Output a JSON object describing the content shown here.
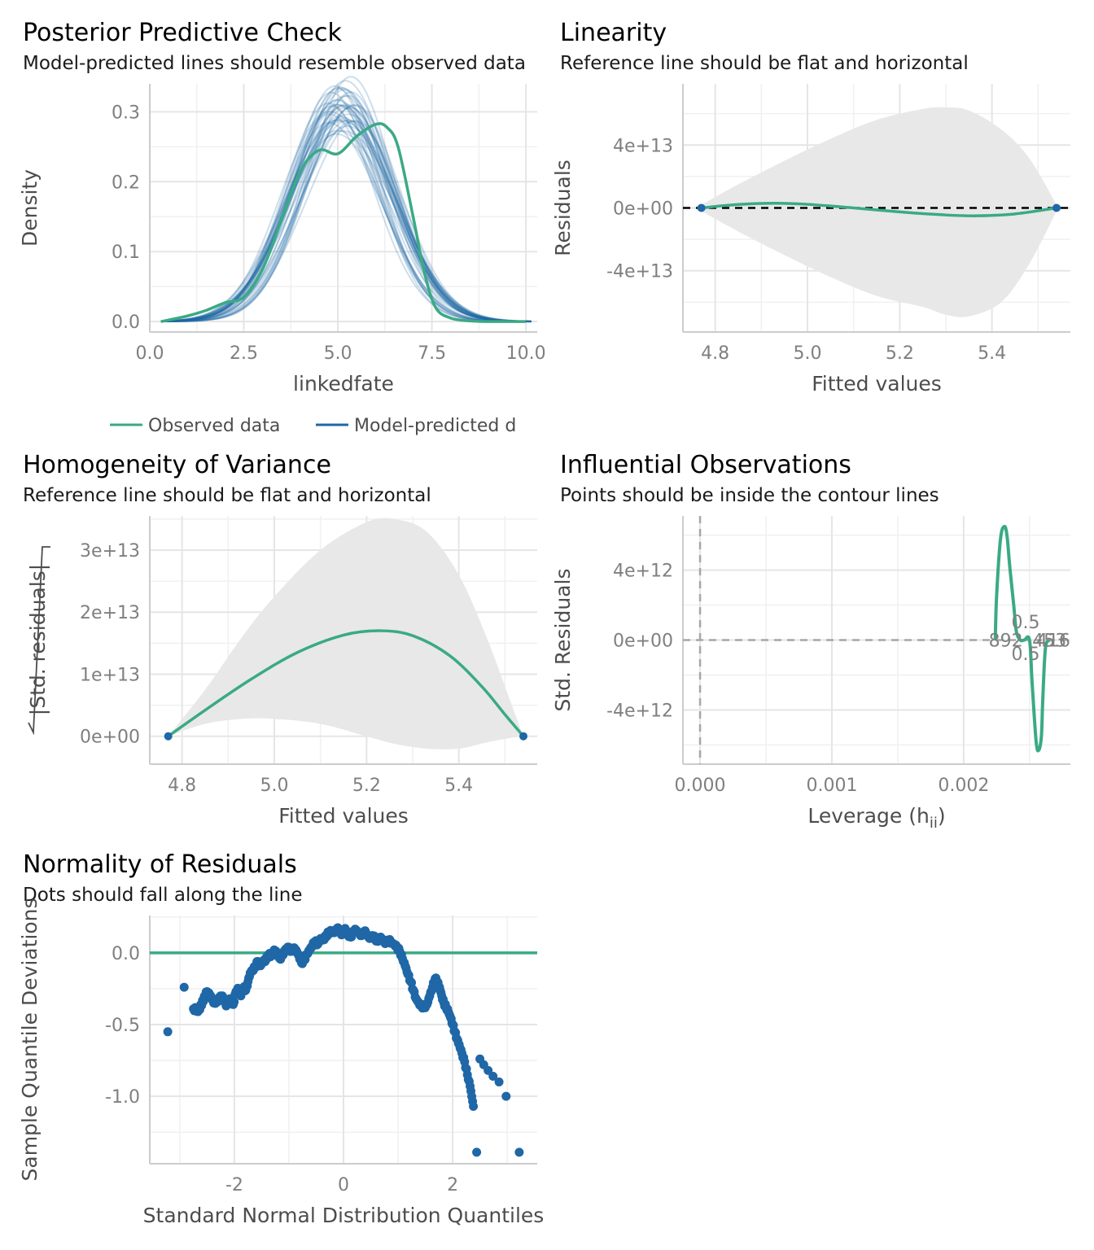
{
  "colors": {
    "observed": "#3aaa84",
    "predicted": "#1f67a6",
    "ribbon": "#e8e8e8",
    "reference": "#000000"
  },
  "panels": {
    "ppc": {
      "title": "Posterior Predictive Check",
      "subtitle": "Model-predicted lines should resemble observed data"
    },
    "linearity": {
      "title": "Linearity",
      "subtitle": "Reference line should be flat and horizontal"
    },
    "homogeneity": {
      "title": "Homogeneity of Variance",
      "subtitle": "Reference line should be flat and horizontal"
    },
    "influential": {
      "title": "Influential Observations",
      "subtitle": "Points should be inside the contour lines"
    },
    "normality": {
      "title": "Normality of Residuals",
      "subtitle": "Dots should fall along the line"
    }
  },
  "chart_data": [
    {
      "id": "ppc",
      "type": "line",
      "xlabel": "linkedfate",
      "ylabel": "Density",
      "xlim": [
        0,
        10.3
      ],
      "ylim": [
        -0.015,
        0.34
      ],
      "xticks": [
        "0.0",
        "2.5",
        "5.0",
        "7.5",
        "10.0"
      ],
      "xtick_values": [
        0,
        2.5,
        5,
        7.5,
        10
      ],
      "yticks": [
        "0.0",
        "0.1",
        "0.2",
        "0.3"
      ],
      "ytick_values": [
        0,
        0.1,
        0.2,
        0.3
      ],
      "legend": {
        "position": "bottom",
        "entries": [
          "Observed data",
          "Model-predicted d"
        ]
      },
      "observed": {
        "x": [
          0.3,
          1.0,
          1.5,
          2.0,
          2.5,
          3.0,
          3.5,
          4.0,
          4.5,
          5.0,
          5.5,
          6.0,
          6.3,
          6.6,
          7.0,
          7.3,
          7.6,
          8.0,
          8.5,
          9.0,
          10.0
        ],
        "y": [
          0.0,
          0.008,
          0.016,
          0.027,
          0.035,
          0.075,
          0.145,
          0.215,
          0.245,
          0.24,
          0.265,
          0.282,
          0.278,
          0.25,
          0.15,
          0.07,
          0.02,
          0.005,
          0.001,
          0.0,
          0.0
        ]
      },
      "predicted": {
        "n_draws": 40,
        "mean": 5.1,
        "sd_range": [
          1.2,
          1.35
        ],
        "peak_range": [
          0.285,
          0.325
        ]
      }
    },
    {
      "id": "linearity",
      "type": "line",
      "xlabel": "Fitted values",
      "ylabel": "Residuals",
      "xlim": [
        4.73,
        5.57
      ],
      "ylim": [
        -79000000000000.0,
        79000000000000.0
      ],
      "xticks": [
        "4.8",
        "5.0",
        "5.2",
        "5.4"
      ],
      "xtick_values": [
        4.8,
        5.0,
        5.2,
        5.4
      ],
      "yticks": [
        "4e+13",
        "0e+00",
        "-4e+13"
      ],
      "ytick_values": [
        40000000000000.0,
        0,
        -40000000000000.0
      ],
      "reference_y": 0,
      "points": {
        "x": [
          4.77,
          5.54
        ],
        "y": [
          0,
          0
        ]
      },
      "smooth": {
        "x": [
          4.77,
          4.85,
          4.93,
          5.0,
          5.1,
          5.2,
          5.3,
          5.37,
          5.45,
          5.54
        ],
        "y": [
          0,
          2200000000000.0,
          3000000000000.0,
          2300000000000.0,
          0,
          -2500000000000.0,
          -4500000000000.0,
          -5000000000000.0,
          -3800000000000.0,
          0
        ]
      },
      "ribbon": {
        "x": [
          4.77,
          4.85,
          4.95,
          5.05,
          5.15,
          5.25,
          5.3,
          5.35,
          5.42,
          5.48,
          5.54
        ],
        "upper": [
          2000000000000.0,
          15000000000000.0,
          30000000000000.0,
          44000000000000.0,
          56000000000000.0,
          63000000000000.0,
          64000000000000.0,
          62000000000000.0,
          50000000000000.0,
          32000000000000.0,
          2000000000000.0
        ],
        "lower": [
          -2000000000000.0,
          -15000000000000.0,
          -30000000000000.0,
          -44000000000000.0,
          -56000000000000.0,
          -63000000000000.0,
          -68000000000000.0,
          -69000000000000.0,
          -60000000000000.0,
          -36000000000000.0,
          -2000000000000.0
        ]
      }
    },
    {
      "id": "homogeneity",
      "type": "line",
      "xlabel": "Fitted values",
      "ylabel": "|Std. residuals|",
      "xlim": [
        4.73,
        5.57
      ],
      "ylim": [
        -4500000000000.0,
        35500000000000.0
      ],
      "xticks": [
        "4.8",
        "5.0",
        "5.2",
        "5.4"
      ],
      "xtick_values": [
        4.8,
        5.0,
        5.2,
        5.4
      ],
      "yticks": [
        "3e+13",
        "2e+13",
        "1e+13",
        "0e+00"
      ],
      "ytick_values": [
        30000000000000.0,
        20000000000000.0,
        10000000000000.0,
        0
      ],
      "points": {
        "x": [
          4.77,
          5.54
        ],
        "y": [
          0,
          0
        ]
      },
      "smooth": {
        "x": [
          4.77,
          4.85,
          4.95,
          5.05,
          5.15,
          5.23,
          5.3,
          5.38,
          5.45,
          5.5,
          5.54
        ],
        "y": [
          0,
          4200000000000.0,
          9200000000000.0,
          13500000000000.0,
          16300000000000.0,
          17000000000000.0,
          16200000000000.0,
          13000000000000.0,
          8000000000000.0,
          3500000000000.0,
          0
        ]
      },
      "ribbon": {
        "x": [
          4.77,
          4.85,
          4.93,
          5.0,
          5.1,
          5.2,
          5.26,
          5.33,
          5.4,
          5.46,
          5.51,
          5.54
        ],
        "upper": [
          0,
          7500000000000.0,
          16000000000000.0,
          22500000000000.0,
          30000000000000.0,
          34500000000000.0,
          35000000000000.0,
          33000000000000.0,
          26000000000000.0,
          16000000000000.0,
          6000000000000.0,
          0
        ],
        "lower": [
          0,
          2000000000000.0,
          2800000000000.0,
          2800000000000.0,
          2000000000000.0,
          0.0,
          -1200000000000.0,
          -2000000000000.0,
          -2000000000000.0,
          -1000000000000.0,
          -300000000000.0,
          0
        ]
      }
    },
    {
      "id": "influential",
      "type": "line",
      "xlabel": "Leverage (h",
      "xlabel_sub": "ii",
      "xlabel_suffix": ")",
      "ylabel": "Std. Residuals",
      "xlim": [
        -0.00013,
        0.00281
      ],
      "ylim": [
        -7100000000000.0,
        7100000000000.0
      ],
      "xticks": [
        "0.000",
        "0.001",
        "0.002"
      ],
      "xtick_values": [
        0,
        0.001,
        0.002
      ],
      "yticks": [
        "4e+12",
        "0e+00",
        "-4e+12"
      ],
      "ytick_values": [
        4000000000000.0,
        0,
        -4000000000000.0
      ],
      "contour_label": "0.5",
      "contour": {
        "x": [
          0.00224,
          0.00225,
          0.00228,
          0.00231,
          0.00233,
          0.00235,
          0.00238,
          0.0024,
          0.00243,
          0.00246,
          0.0025,
          0.00252,
          0.00255,
          0.00257,
          0.00259,
          0.0026,
          0.00262,
          0.00265
        ],
        "y": [
          0,
          2500000000000.0,
          5800000000000.0,
          6500000000000.0,
          5900000000000.0,
          4200000000000.0,
          2000000000000.0,
          500000000000.0,
          0,
          0,
          0,
          -2500000000000.0,
          -5800000000000.0,
          -6300000000000.0,
          -5500000000000.0,
          -3500000000000.0,
          -500000000000.0,
          0
        ]
      },
      "point_labels": [
        {
          "text": "892",
          "x": 0.00232,
          "y": 0
        },
        {
          "text": "453",
          "x": 0.00265,
          "y": 0
        },
        {
          "text": "416",
          "x": 0.00268,
          "y": 0
        }
      ]
    },
    {
      "id": "normality",
      "type": "scatter",
      "xlabel": "Standard Normal Distribution Quantiles",
      "ylabel": "Sample Quantile Deviations",
      "xlim": [
        -3.55,
        3.55
      ],
      "ylim": [
        -1.47,
        0.26
      ],
      "xticks": [
        "-2",
        "0",
        "2"
      ],
      "xtick_values": [
        -2,
        0,
        2
      ],
      "yticks": [
        "0.0",
        "-0.5",
        "-1.0"
      ],
      "ytick_values": [
        0,
        -0.5,
        -1.0
      ],
      "reference_y": 0,
      "points": {
        "x": [
          -3.22,
          -2.92,
          -2.75,
          -2.65,
          -2.5,
          -2.45,
          -2.38,
          -2.3,
          -2.22,
          -2.15,
          -2.08,
          -2.02,
          -1.97,
          -1.92,
          -1.88,
          -1.83,
          -1.79,
          -1.75,
          -1.71,
          -1.67,
          -1.62,
          -1.57,
          -1.52,
          -1.47,
          -1.42,
          -1.37,
          -1.32,
          -1.27,
          -1.22,
          -1.17,
          -1.12,
          -1.07,
          -1.02,
          -0.97,
          -0.92,
          -0.87,
          -0.82,
          -0.77,
          -0.72,
          -0.67,
          -0.62,
          -0.57,
          -0.52,
          -0.47,
          -0.42,
          -0.37,
          -0.32,
          -0.27,
          -0.22,
          -0.17,
          -0.12,
          -0.07,
          -0.02,
          0.03,
          0.08,
          0.13,
          0.18,
          0.23,
          0.28,
          0.33,
          0.38,
          0.43,
          0.48,
          0.53,
          0.58,
          0.63,
          0.68,
          0.73,
          0.78,
          0.83,
          0.88,
          0.93,
          0.98,
          1.03,
          1.08,
          1.13,
          1.18,
          1.23,
          1.28,
          1.33,
          1.38,
          1.43,
          1.48,
          1.53,
          1.58,
          1.63,
          1.68,
          1.72,
          1.76,
          1.8,
          1.84,
          1.88,
          1.92,
          1.96,
          2.0,
          2.04,
          2.08,
          2.12,
          2.17,
          2.22,
          2.27,
          2.32,
          2.38,
          2.44,
          2.5,
          2.57,
          2.65,
          2.74,
          2.85,
          2.98,
          3.22
        ],
        "y": [
          -0.55,
          -0.24,
          -0.39,
          -0.4,
          -0.27,
          -0.29,
          -0.35,
          -0.33,
          -0.3,
          -0.37,
          -0.32,
          -0.36,
          -0.27,
          -0.25,
          -0.3,
          -0.24,
          -0.26,
          -0.2,
          -0.14,
          -0.12,
          -0.1,
          -0.06,
          -0.09,
          -0.06,
          -0.05,
          -0.01,
          -0.02,
          0.02,
          0.0,
          -0.04,
          -0.02,
          0.02,
          0.04,
          0.01,
          0.03,
          0.02,
          -0.02,
          -0.07,
          -0.05,
          -0.01,
          0.02,
          0.05,
          0.08,
          0.06,
          0.1,
          0.09,
          0.12,
          0.14,
          0.15,
          0.14,
          0.17,
          0.15,
          0.13,
          0.17,
          0.13,
          0.11,
          0.15,
          0.16,
          0.14,
          0.12,
          0.15,
          0.13,
          0.1,
          0.12,
          0.1,
          0.08,
          0.11,
          0.08,
          0.07,
          0.09,
          0.07,
          0.06,
          0.04,
          0.01,
          -0.04,
          -0.09,
          -0.15,
          -0.2,
          -0.26,
          -0.32,
          -0.35,
          -0.37,
          -0.38,
          -0.36,
          -0.3,
          -0.24,
          -0.18,
          -0.2,
          -0.24,
          -0.3,
          -0.35,
          -0.38,
          -0.41,
          -0.45,
          -0.5,
          -0.55,
          -0.6,
          -0.64,
          -0.7,
          -0.76,
          -0.85,
          -0.93,
          -1.07,
          -1.39,
          -0.74,
          -0.78,
          -0.82,
          -0.86,
          -0.9,
          -1.0,
          -1.39
        ]
      }
    }
  ]
}
